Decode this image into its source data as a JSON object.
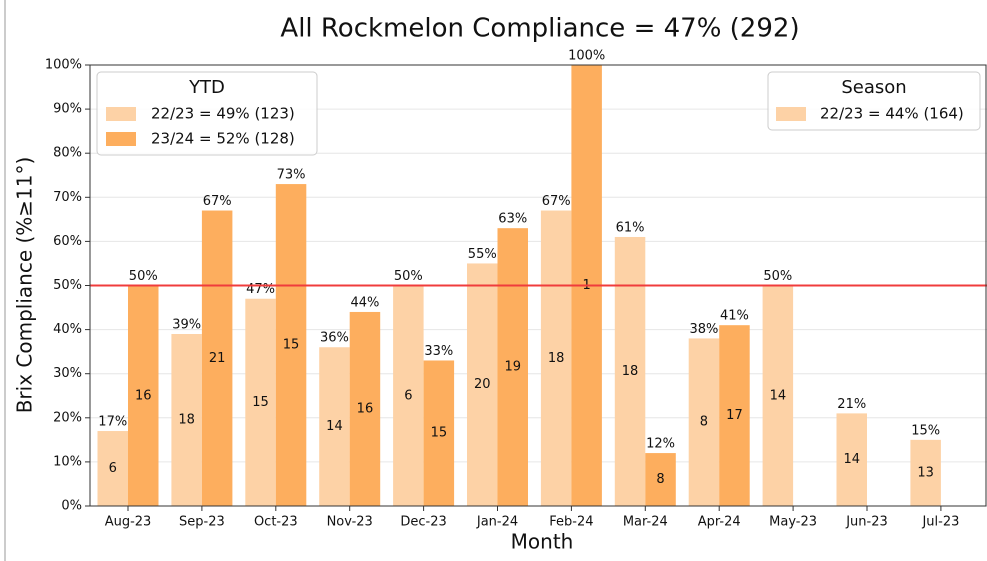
{
  "chart_data": {
    "type": "bar",
    "title": "All Rockmelon Compliance = 47% (292)",
    "x_label": "Month",
    "y_label": "Brix Compliance (%≥11°)",
    "categories": [
      "Aug-23",
      "Sep-23",
      "Oct-23",
      "Nov-23",
      "Dec-23",
      "Jan-24",
      "Feb-24",
      "Mar-24",
      "Apr-24",
      "May-23",
      "Jun-23",
      "Jul-23"
    ],
    "legend_title": "YTD",
    "series": [
      {
        "name": "22/23 = 49% (123)",
        "color": "#fdd2a6",
        "values": [
          17,
          39,
          47,
          36,
          50,
          55,
          67,
          61,
          38,
          50,
          21,
          15
        ],
        "value_labels": [
          "17%",
          "39%",
          "47%",
          "36%",
          "50%",
          "55%",
          "67%",
          "61%",
          "38%",
          "50%",
          "21%",
          "15%"
        ],
        "counts": [
          6,
          18,
          15,
          14,
          6,
          20,
          18,
          18,
          8,
          14,
          14,
          13
        ]
      },
      {
        "name": "23/24 = 52% (128)",
        "color": "#fdae5e",
        "values": [
          50,
          67,
          73,
          44,
          33,
          63,
          100,
          12,
          41,
          null,
          null,
          null
        ],
        "value_labels": [
          "50%",
          "67%",
          "73%",
          "44%",
          "33%",
          "63%",
          "100%",
          "12%",
          "41%",
          null,
          null,
          null
        ],
        "counts": [
          16,
          21,
          15,
          16,
          15,
          19,
          1,
          8,
          17,
          null,
          null,
          null
        ]
      }
    ],
    "season_legend": {
      "title": "Season",
      "entries": [
        {
          "name": "22/23 = 44% (164)",
          "color": "#fdd2a6"
        }
      ]
    },
    "reference_line": {
      "value": 50,
      "color": "#f03c3c"
    },
    "ylim": [
      0,
      100
    ],
    "yticks": [
      {
        "value": 0,
        "label": "0%"
      },
      {
        "value": 10,
        "label": "10%"
      },
      {
        "value": 20,
        "label": "20%"
      },
      {
        "value": 30,
        "label": "30%"
      },
      {
        "value": 40,
        "label": "40%"
      },
      {
        "value": 50,
        "label": "50%"
      },
      {
        "value": 60,
        "label": "60%"
      },
      {
        "value": 70,
        "label": "70%"
      },
      {
        "value": 80,
        "label": "80%"
      },
      {
        "value": 90,
        "label": "90%"
      },
      {
        "value": 100,
        "label": "100%"
      }
    ],
    "grid": true
  }
}
